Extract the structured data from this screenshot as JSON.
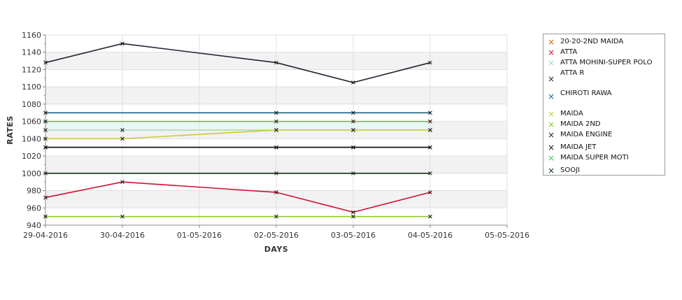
{
  "chart_data": {
    "type": "line",
    "xlabel": "DAYS",
    "ylabel": "RATES",
    "x_ticks": [
      "29-04-2016",
      "30-04-2016",
      "01-05-2016",
      "02-05-2016",
      "03-05-2016",
      "04-05-2016",
      "05-05-2016"
    ],
    "xlim": [
      "29-04-2016",
      "05-05-2016"
    ],
    "y_ticks": [
      940,
      960,
      980,
      1000,
      1020,
      1040,
      1060,
      1080,
      1100,
      1120,
      1140,
      1160
    ],
    "ylim": [
      940,
      1160
    ],
    "grid": true,
    "legend_position": "right",
    "series": [
      {
        "name": "20-20-2ND MAIDA",
        "color": "#cc6600",
        "points": []
      },
      {
        "name": "ATTA",
        "color": "#cc1133",
        "points": [
          [
            "29-04-2016",
            972
          ],
          [
            "30-04-2016",
            990
          ],
          [
            "02-05-2016",
            978
          ],
          [
            "03-05-2016",
            955
          ],
          [
            "04-05-2016",
            978
          ]
        ]
      },
      {
        "name": "ATTA MOHINI-SUPER POLO",
        "color": "#99ddbb",
        "points": [
          [
            "29-04-2016",
            1050
          ],
          [
            "30-04-2016",
            1050
          ],
          [
            "02-05-2016",
            1050
          ],
          [
            "03-05-2016",
            1050
          ],
          [
            "04-05-2016",
            1050
          ]
        ]
      },
      {
        "name": "ATTA R",
        "color": "#222233",
        "points": [
          [
            "29-04-2016",
            1128
          ],
          [
            "30-04-2016",
            1150
          ],
          [
            "02-05-2016",
            1128
          ],
          [
            "03-05-2016",
            1105
          ],
          [
            "04-05-2016",
            1128
          ]
        ]
      },
      {
        "name": "CHIROTI RAWA",
        "color": "#1a5e80",
        "points": [
          [
            "29-04-2016",
            1070
          ],
          [
            "02-05-2016",
            1070
          ],
          [
            "03-05-2016",
            1070
          ],
          [
            "04-05-2016",
            1070
          ]
        ]
      },
      {
        "name": "MAIDA",
        "color": "#c8cc33",
        "points": [
          [
            "29-04-2016",
            1040
          ],
          [
            "30-04-2016",
            1040
          ],
          [
            "02-05-2016",
            1050
          ],
          [
            "03-05-2016",
            1050
          ],
          [
            "04-05-2016",
            1050
          ]
        ]
      },
      {
        "name": "MAIDA 2ND",
        "color": "#88cc22",
        "points": [
          [
            "29-04-2016",
            950
          ],
          [
            "30-04-2016",
            950
          ],
          [
            "02-05-2016",
            950
          ],
          [
            "03-05-2016",
            950
          ],
          [
            "04-05-2016",
            950
          ]
        ]
      },
      {
        "name": "MAIDA ENGINE",
        "color": "#112233",
        "points": [
          [
            "29-04-2016",
            1030
          ],
          [
            "02-05-2016",
            1030
          ],
          [
            "03-05-2016",
            1030
          ],
          [
            "04-05-2016",
            1030
          ]
        ]
      },
      {
        "name": "MAIDA JET",
        "color": "#111111",
        "points": [
          [
            "29-04-2016",
            1030
          ],
          [
            "02-05-2016",
            1030
          ],
          [
            "03-05-2016",
            1030
          ],
          [
            "04-05-2016",
            1030
          ]
        ]
      },
      {
        "name": "MAIDA SUPER MOTI",
        "color": "#33cc55",
        "points": [
          [
            "29-04-2016",
            1060
          ],
          [
            "02-05-2016",
            1060
          ],
          [
            "03-05-2016",
            1060
          ],
          [
            "04-05-2016",
            1060
          ]
        ]
      },
      {
        "name": "SOOJI",
        "color": "#113311",
        "points": [
          [
            "29-04-2016",
            1000
          ],
          [
            "02-05-2016",
            1000
          ],
          [
            "03-05-2016",
            1000
          ],
          [
            "04-05-2016",
            1000
          ]
        ]
      }
    ]
  }
}
